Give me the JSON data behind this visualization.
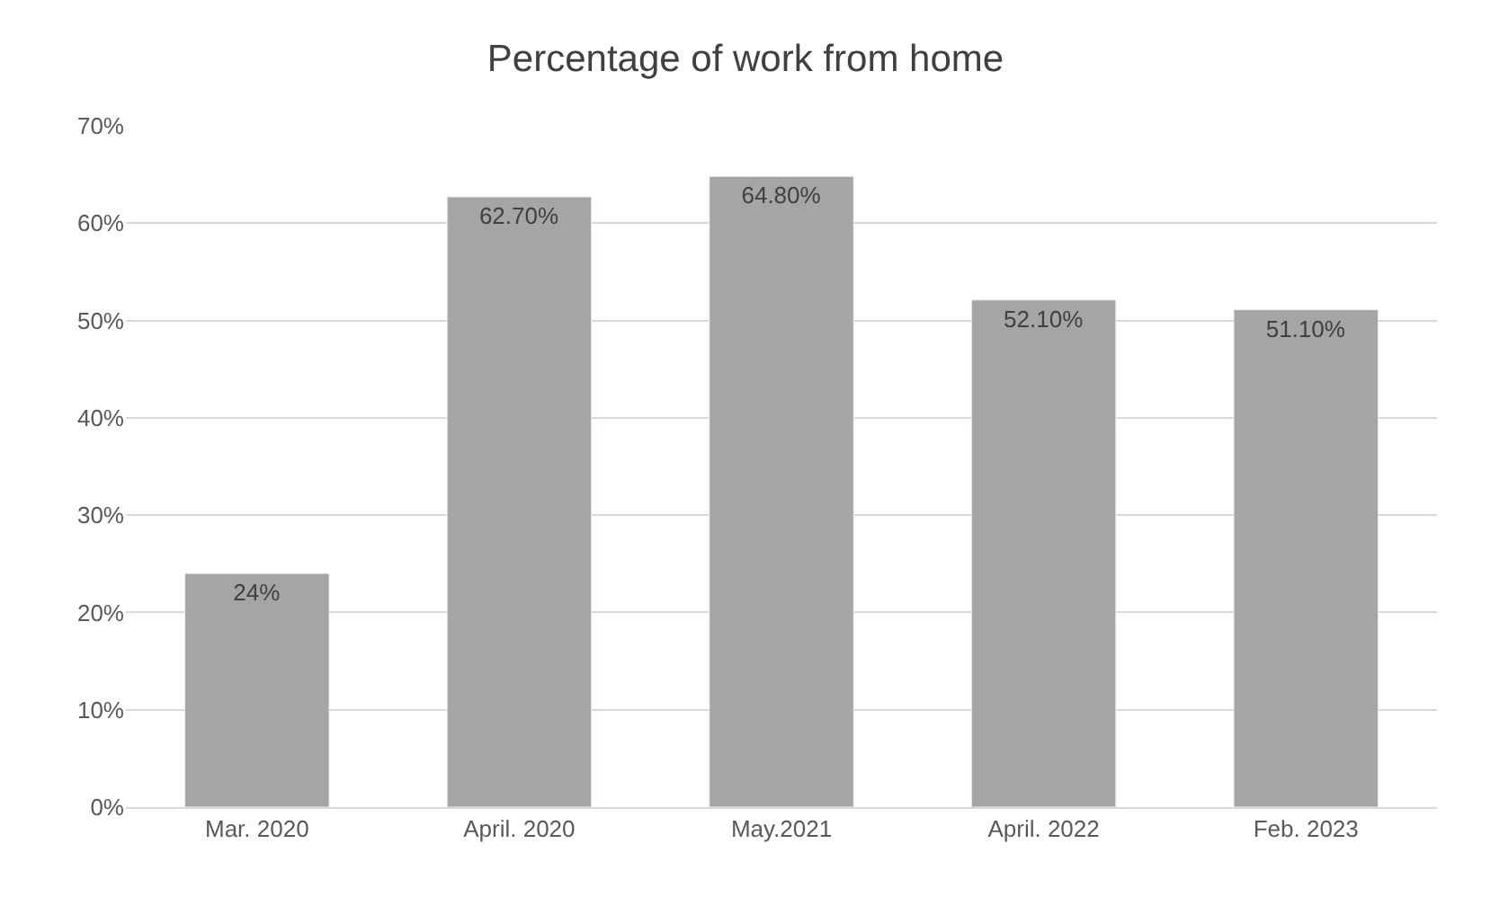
{
  "chart_data": {
    "type": "bar",
    "title": "Percentage of work from home",
    "categories": [
      "Mar. 2020",
      "April. 2020",
      "May.2021",
      "April. 2022",
      "Feb. 2023"
    ],
    "values": [
      24,
      62.7,
      64.8,
      52.1,
      51.1
    ],
    "value_labels": [
      "24%",
      "62.70%",
      "64.80%",
      "52.10%",
      "51.10%"
    ],
    "color": "#a5a5a5",
    "ylim": [
      0,
      70
    ],
    "yticks": [
      {
        "value": 0,
        "label": "0%"
      },
      {
        "value": 10,
        "label": "10%"
      },
      {
        "value": 20,
        "label": "20%"
      },
      {
        "value": 30,
        "label": "30%"
      },
      {
        "value": 40,
        "label": "40%"
      },
      {
        "value": 50,
        "label": "50%"
      },
      {
        "value": 60,
        "label": "60%"
      },
      {
        "value": 70,
        "label": "70%"
      }
    ],
    "grid": "y"
  }
}
